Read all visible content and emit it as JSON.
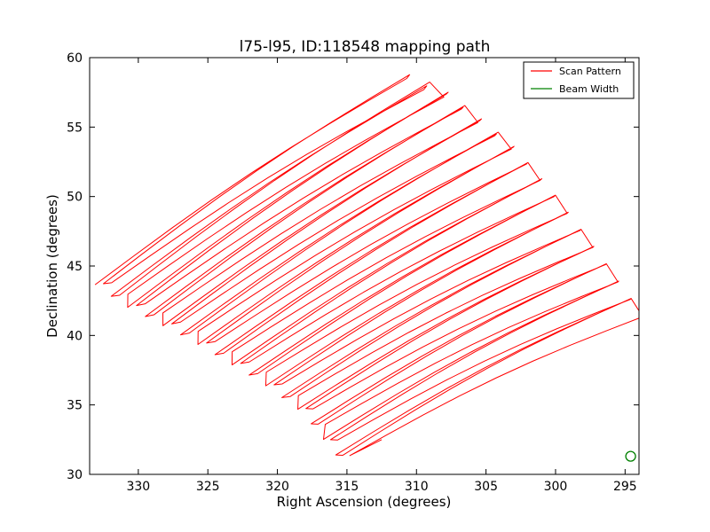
{
  "chart_data": {
    "type": "line",
    "title": "l75-l95, ID:118548 mapping path",
    "xlabel": "Right Ascension (degrees)",
    "ylabel": "Declination (degrees)",
    "xlim": [
      333.5,
      294.0
    ],
    "ylim": [
      30,
      60
    ],
    "x_axis_inverted": true,
    "x_ticks": [
      330,
      325,
      320,
      315,
      310,
      305,
      300,
      295
    ],
    "x_tick_labels": [
      "330",
      "325",
      "320",
      "315",
      "310",
      "305",
      "300",
      "295"
    ],
    "y_ticks": [
      30,
      35,
      40,
      45,
      50,
      55,
      60
    ],
    "y_tick_labels": [
      "30",
      "35",
      "40",
      "45",
      "50",
      "55",
      "60"
    ],
    "grid": false,
    "legend_position": "top-right",
    "series": [
      {
        "name": "Scan Pattern",
        "color": "#ff0000",
        "kind": "raster-scan",
        "num_legs": 48,
        "scan_direction": "serpentine",
        "start_edge": [
          [
            332.9,
            44.0
          ],
          [
            330.8,
            42.5
          ],
          [
            326.0,
            40.0
          ],
          [
            321.0,
            37.0
          ],
          [
            318.0,
            34.8
          ],
          [
            315.0,
            31.0
          ]
        ],
        "end_edge": [
          [
            310.7,
            58.5
          ],
          [
            308.0,
            57.5
          ],
          [
            303.0,
            53.5
          ],
          [
            300.0,
            50.0
          ],
          [
            297.0,
            46.0
          ],
          [
            294.0,
            41.8
          ]
        ],
        "start_edge_wiggle": 0.35,
        "end_edge_wiggle": 0.45,
        "path_end": [
          312.5,
          32.5
        ]
      },
      {
        "name": "Beam Width",
        "color": "#008000",
        "kind": "circle",
        "center": [
          294.6,
          31.3
        ],
        "radius_deg": 0.35
      }
    ]
  }
}
